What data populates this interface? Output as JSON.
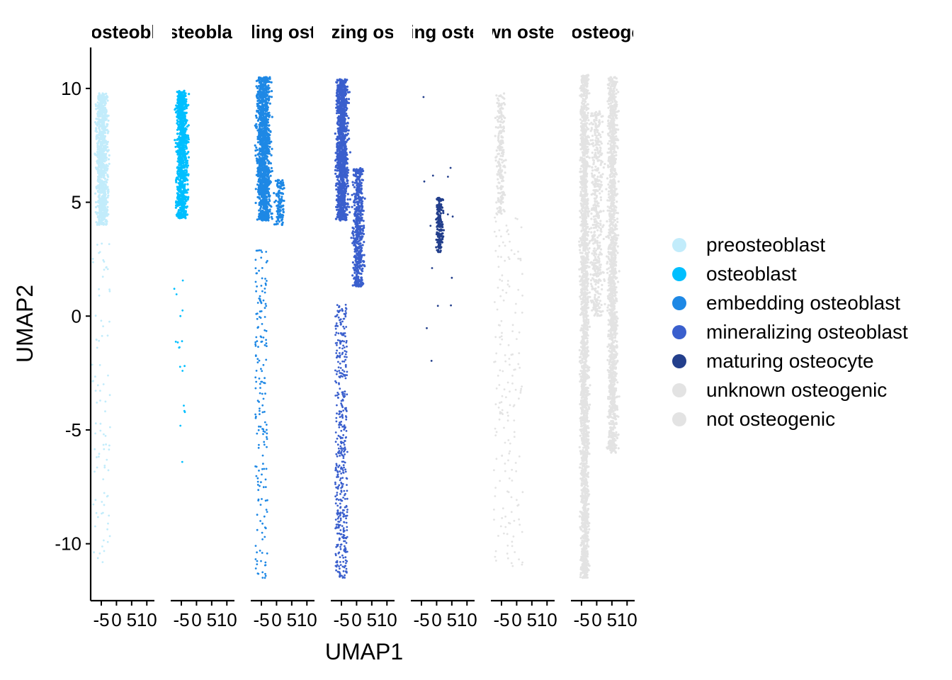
{
  "chart_data": {
    "type": "scatter",
    "xlabel": "UMAP1",
    "ylabel": "UMAP2",
    "ylim": [
      -12.5,
      11.8
    ],
    "xlim": [
      -8.5,
      12.5
    ],
    "y_ticks": [
      {
        "value": 10,
        "label": "10"
      },
      {
        "value": 5,
        "label": "5"
      },
      {
        "value": 0,
        "label": "0"
      },
      {
        "value": -5,
        "label": "-5"
      },
      {
        "value": -10,
        "label": "-10"
      }
    ],
    "x_ticks": [
      {
        "value": -5,
        "label": "-5"
      },
      {
        "value": 0,
        "label": "0"
      },
      {
        "value": 5,
        "label": "5"
      },
      {
        "value": 10,
        "label": "10"
      }
    ],
    "panels": [
      {
        "title": "preosteoblast",
        "color": "#c2ecfb"
      },
      {
        "title": "osteoblast",
        "color": "#00bfff"
      },
      {
        "title": "embedding osteoblast",
        "color": "#1e88e5"
      },
      {
        "title": "mineralizing osteoblast",
        "color": "#3a5fcd"
      },
      {
        "title": "maturing osteocyte",
        "color": "#233f8c"
      },
      {
        "title": "unknown osteogenic",
        "color": "#e3e3e3"
      },
      {
        "title": "not osteogenic",
        "color": "#e3e3e3"
      }
    ],
    "legend": {
      "position": "right",
      "items": [
        {
          "label": "preosteoblast",
          "color": "#c2ecfb"
        },
        {
          "label": "osteoblast",
          "color": "#00bfff"
        },
        {
          "label": "embedding osteoblast",
          "color": "#1e88e5"
        },
        {
          "label": "mineralizing osteoblast",
          "color": "#3a5fcd"
        },
        {
          "label": "maturing osteocyte",
          "color": "#233f8c"
        },
        {
          "label": "unknown osteogenic",
          "color": "#e3e3e3"
        },
        {
          "label": "not osteogenic",
          "color": "#e3e3e3"
        }
      ]
    },
    "grid": false
  }
}
